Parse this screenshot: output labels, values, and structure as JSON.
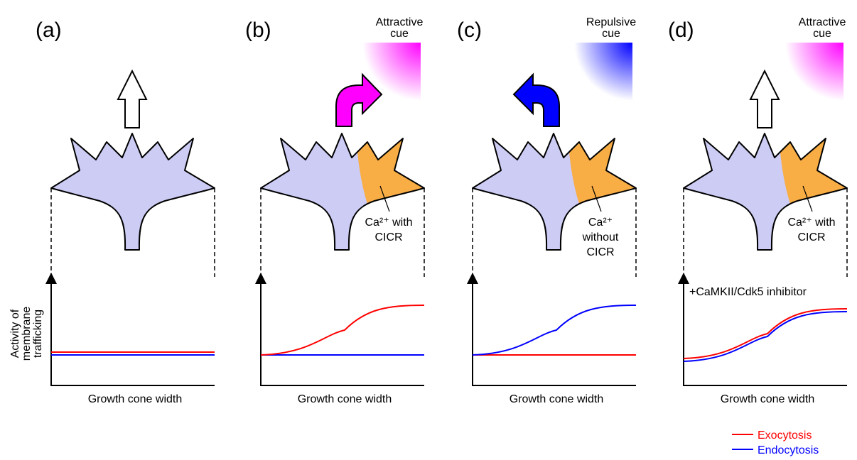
{
  "panels": [
    {
      "label": "(a)",
      "x_label": "Growth cone width",
      "y_label": [
        "Activity of",
        "membrane",
        "trafficking"
      ]
    },
    {
      "label": "(b)",
      "cue": [
        "Attractive",
        "cue"
      ],
      "cue_color": "#ff00ff",
      "ca_label": [
        "Ca²⁺ with",
        "CICR"
      ],
      "x_label": "Growth cone width"
    },
    {
      "label": "(c)",
      "cue": [
        "Repulsive",
        "cue"
      ],
      "cue_color": "#0000ff",
      "ca_label": [
        "Ca²⁺",
        "without",
        "CICR"
      ],
      "x_label": "Growth cone width"
    },
    {
      "label": "(d)",
      "cue": [
        "Attractive",
        "cue"
      ],
      "cue_color": "#ff00ff",
      "ca_label": [
        "Ca²⁺ with",
        "CICR"
      ],
      "x_label": "Growth cone width",
      "note": "+CaMKII/Cdk5 inhibitor"
    }
  ],
  "legend": [
    {
      "name": "Exocytosis",
      "color": "#ff0000"
    },
    {
      "name": "Endocytosis",
      "color": "#0000ff"
    }
  ]
}
